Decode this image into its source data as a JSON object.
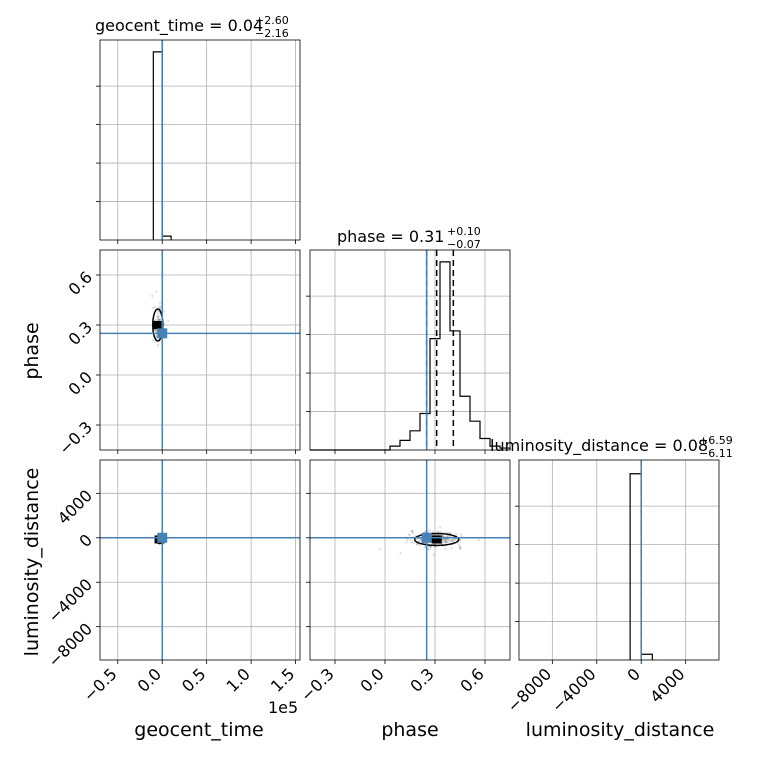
{
  "chart_data": {
    "type": "corner",
    "parameters": [
      "geocent_time",
      "phase",
      "luminosity_distance"
    ],
    "truth": {
      "geocent_time": 0.0,
      "phase": 0.25,
      "luminosity_distance": 0.0
    },
    "truth_color": "#4682b4",
    "grid": true,
    "titles": [
      {
        "param": "geocent_time",
        "text": "geocent_time = 0.04",
        "plus": "+2.60",
        "minus": "−2.16"
      },
      {
        "param": "phase",
        "text": "phase = 0.31",
        "plus": "+0.10",
        "minus": "−0.07"
      },
      {
        "param": "luminosity_distance",
        "text": "luminosity_distance = 0.08",
        "plus": "+6.59",
        "minus": "−6.11"
      }
    ],
    "axis_labels": {
      "geocent_time": "geocent_time",
      "phase": "phase",
      "luminosity_distance": "luminosity_distance"
    },
    "offset_text": {
      "geocent_time": "1e5"
    },
    "ranges": {
      "geocent_time": [
        -0.7,
        1.55
      ],
      "phase": [
        -0.45,
        0.75
      ],
      "luminosity_distance": [
        -11000,
        7000
      ]
    },
    "ticks": {
      "geocent_time": {
        "values": [
          -0.5,
          0.0,
          0.5,
          1.0,
          1.5
        ],
        "labels": [
          "−0.5",
          "0.0",
          "0.5",
          "1.0",
          "1.5"
        ]
      },
      "phase": {
        "values": [
          -0.3,
          0.0,
          0.3,
          0.6
        ],
        "labels": [
          "−0.3",
          "0.0",
          "0.3",
          "0.6"
        ]
      },
      "luminosity_distance_x": {
        "values": [
          -8000,
          -4000,
          0,
          4000
        ],
        "labels": [
          "−8000",
          "−4000",
          "0",
          "4000"
        ]
      },
      "luminosity_distance_y": {
        "values": [
          -8000,
          -4000,
          0,
          4000
        ],
        "labels": [
          "−8000",
          "−4000",
          "0",
          "4000"
        ]
      }
    },
    "histograms": {
      "geocent_time": {
        "bin_edges": [
          -0.1,
          0.0,
          0.1
        ],
        "counts": [
          0.98,
          0.02
        ],
        "quantiles": [
          0.0
        ]
      },
      "phase": {
        "bin_edges": [
          -0.45,
          -0.39,
          -0.33,
          -0.27,
          -0.21,
          -0.15,
          -0.09,
          -0.03,
          0.03,
          0.09,
          0.15,
          0.21,
          0.27,
          0.33,
          0.39,
          0.45,
          0.51,
          0.57,
          0.63,
          0.69,
          0.75
        ],
        "counts": [
          0,
          0,
          0,
          0,
          0,
          0,
          0,
          0,
          0.02,
          0.05,
          0.1,
          0.19,
          0.58,
          0.98,
          0.62,
          0.28,
          0.15,
          0.06,
          0.02,
          0.01
        ],
        "quantiles": [
          0.25,
          0.31,
          0.41
        ]
      },
      "luminosity_distance": {
        "bin_edges": [
          -1000,
          0,
          1000
        ],
        "counts": [
          0.97,
          0.03
        ],
        "quantiles": [
          0.0
        ]
      }
    }
  }
}
